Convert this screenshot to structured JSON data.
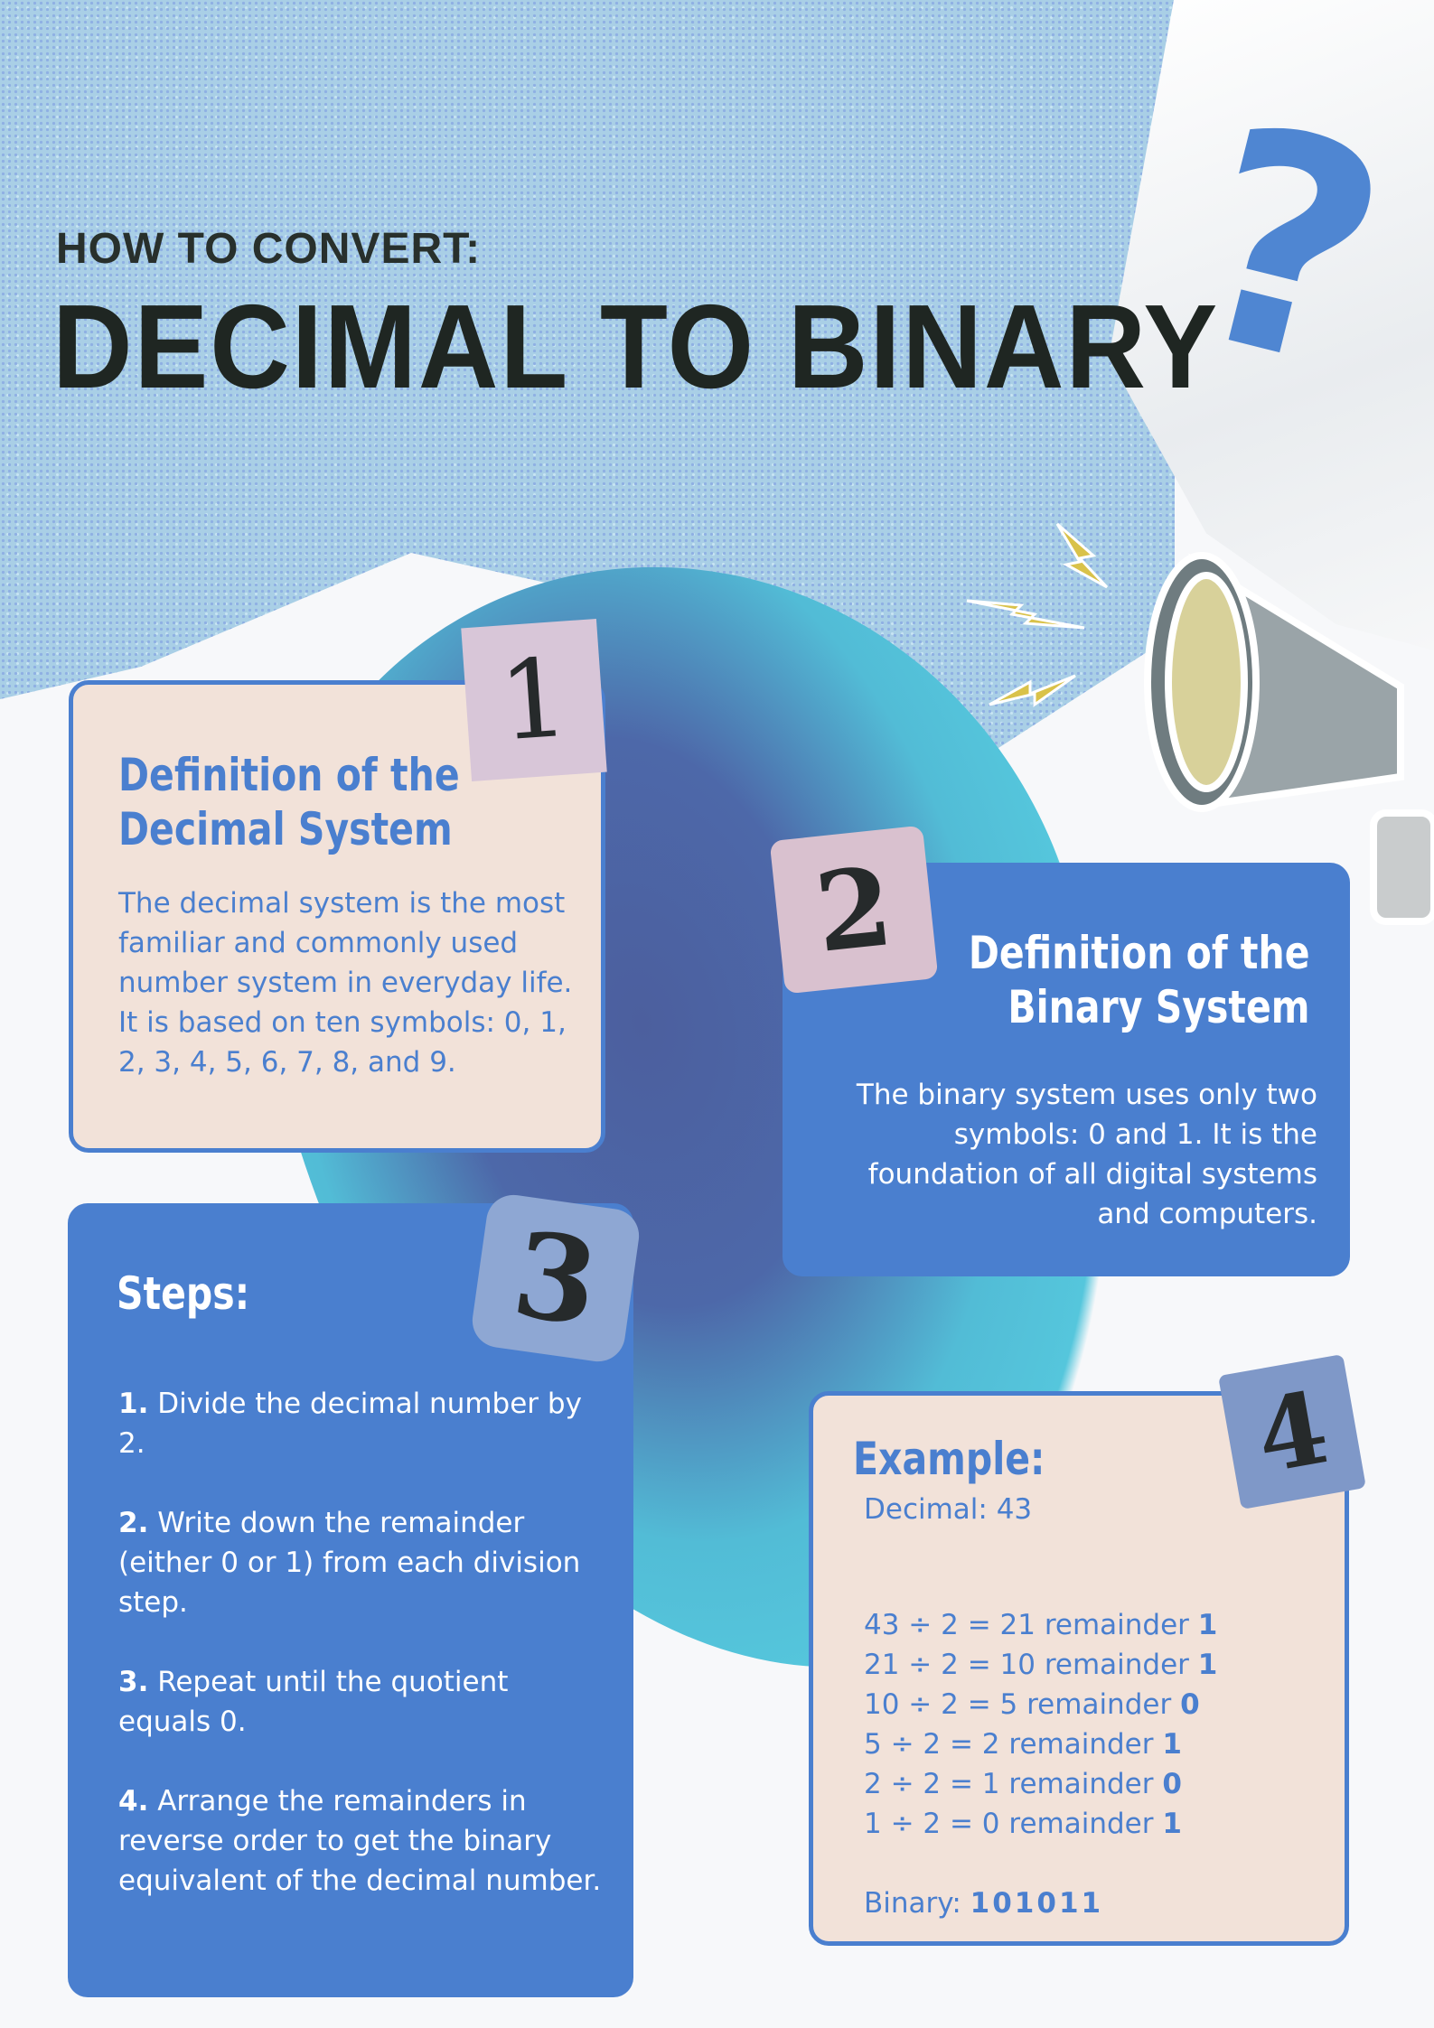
{
  "header": {
    "subtitle": "HOW TO CONVERT:",
    "title": "DECIMAL TO BINARY"
  },
  "decor": {
    "question_mark": "?",
    "megaphone": "megaphone-icon",
    "lightning": "lightning-bolt-icon"
  },
  "colors": {
    "accent_blue": "#4a7fcf",
    "card_cream": "#f2e2d9",
    "title_dark": "#1f2622",
    "blob_teal": "#55c6dc"
  },
  "card1": {
    "badge": "1",
    "title_line1": "Definition of the",
    "title_line2": "Decimal System",
    "text": "The decimal system is the most familiar and commonly used number system in everyday life. It is based on ten symbols: 0, 1, 2, 3, 4, 5, 6, 7, 8, and 9."
  },
  "card2": {
    "badge": "2",
    "title_line1": "Definition of the",
    "title_line2": "Binary System",
    "text": "The binary system uses only two symbols: 0 and 1. It is the foundation of all digital systems and computers."
  },
  "card3": {
    "badge": "3",
    "title": "Steps:",
    "steps": [
      {
        "num": "1.",
        "text": " Divide the decimal number by 2."
      },
      {
        "num": "2.",
        "text": " Write down the remainder (either 0 or 1) from each division step."
      },
      {
        "num": "3.",
        "text": " Repeat until the quotient equals 0."
      },
      {
        "num": "4.",
        "text": " Arrange the remainders in reverse order to get the binary equivalent of the decimal number."
      }
    ]
  },
  "card4": {
    "badge": "4",
    "title": "Example:",
    "decimal": "Decimal: 43",
    "lines": [
      {
        "text": "43 ÷ 2 = 21 remainder ",
        "rem": "1"
      },
      {
        "text": "21 ÷ 2 = 10 remainder ",
        "rem": "1"
      },
      {
        "text": "10 ÷ 2 = 5 remainder ",
        "rem": "0"
      },
      {
        "text": "5 ÷ 2 = 2 remainder ",
        "rem": "1"
      },
      {
        "text": "2 ÷ 2 = 1 remainder ",
        "rem": "0"
      },
      {
        "text": "1 ÷ 2 = 0 remainder ",
        "rem": "1"
      }
    ],
    "binary_label": "Binary: ",
    "binary_value": "101011"
  }
}
